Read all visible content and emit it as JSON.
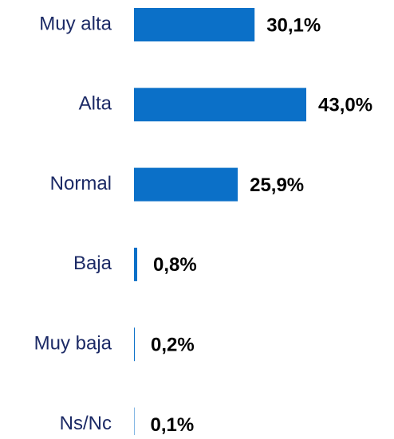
{
  "chart_data": {
    "type": "bar",
    "orientation": "horizontal",
    "categories": [
      "Muy alta",
      "Alta",
      "Normal",
      "Baja",
      "Muy baja",
      "Ns/Nc"
    ],
    "values": [
      30.1,
      43.0,
      25.9,
      0.8,
      0.2,
      0.1
    ],
    "value_labels": [
      "30,1%",
      "43,0%",
      "25,9%",
      "0,8%",
      "0,2%",
      "0,1%"
    ],
    "color": "#0b70c8"
  }
}
